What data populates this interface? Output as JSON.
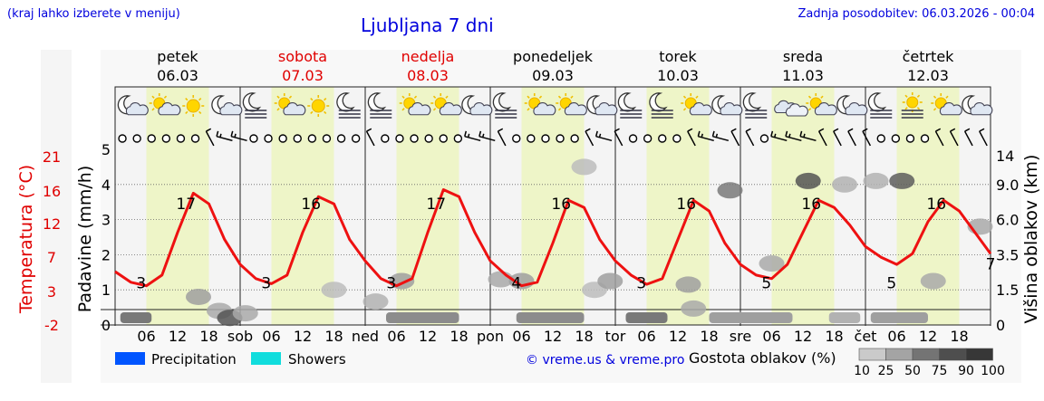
{
  "header": {
    "left_note": "(kraj lahko izberete v meniju)",
    "title": "Ljubljana 7 dni",
    "updated": "Zadnja posodobitev: 06.03.2026 - 00:04"
  },
  "colors": {
    "temperature": "#ee1111",
    "day_band": "#eef5c8",
    "night_band": "#f4f4f4",
    "precipitation": "#0055ff",
    "showers": "#11dddd",
    "axis_red": "#e00000",
    "link_blue": "#0000dd"
  },
  "days": [
    {
      "name": "petek",
      "date": "06.03",
      "weekend": false,
      "abbr": ""
    },
    {
      "name": "sobota",
      "date": "07.03",
      "weekend": true,
      "abbr": "sob"
    },
    {
      "name": "nedelja",
      "date": "08.03",
      "weekend": true,
      "abbr": "ned"
    },
    {
      "name": "ponedeljek",
      "date": "09.03",
      "weekend": false,
      "abbr": "pon"
    },
    {
      "name": "torek",
      "date": "10.03",
      "weekend": false,
      "abbr": "tor"
    },
    {
      "name": "sreda",
      "date": "11.03",
      "weekend": false,
      "abbr": "sre"
    },
    {
      "name": "četrtek",
      "date": "12.03",
      "weekend": false,
      "abbr": "čet"
    }
  ],
  "hour_ticks": [
    "06",
    "12",
    "18"
  ],
  "chart_data": {
    "type": "line",
    "title": "Ljubljana 7 dni",
    "x_unit": "hours from 06.03 00:00",
    "xlim": [
      0,
      168
    ],
    "temperature": {
      "axis_label": "Temperatura (°C)",
      "ticks": [
        "21",
        "16",
        "12",
        "7",
        "3",
        "-2"
      ],
      "ylim": [
        -2,
        21
      ],
      "x": [
        0,
        3,
        6,
        9,
        12,
        15,
        18,
        21,
        24,
        27,
        30,
        33,
        36,
        39,
        42,
        45,
        48,
        51,
        54,
        57,
        60,
        63,
        66,
        69,
        72,
        75,
        78,
        81,
        84,
        87,
        90,
        93,
        96,
        99,
        102,
        105,
        108,
        111,
        114,
        117,
        120,
        123,
        126,
        129,
        132,
        135,
        138,
        141,
        144,
        147,
        150,
        153,
        156,
        159,
        162,
        165,
        168
      ],
      "y": [
        5.5,
        4,
        3.5,
        5,
        11,
        16.5,
        15,
        10,
        6.5,
        4.5,
        3.8,
        5,
        11,
        16,
        15,
        10,
        7,
        4.5,
        3.5,
        4.5,
        11,
        17,
        16,
        11,
        7,
        5,
        3.5,
        4,
        9.5,
        15.5,
        14.5,
        10,
        7,
        5,
        3.7,
        4.5,
        10,
        15.5,
        14,
        9.5,
        6.5,
        5,
        4.5,
        6.5,
        11,
        15.5,
        14.5,
        12,
        9,
        7.5,
        6.5,
        8,
        12.5,
        15.5,
        14,
        11,
        8
      ],
      "max_labels": [
        {
          "x": 15,
          "text": "17"
        },
        {
          "x": 39,
          "text": "16"
        },
        {
          "x": 63,
          "text": "17"
        },
        {
          "x": 87,
          "text": "16"
        },
        {
          "x": 111,
          "text": "16"
        },
        {
          "x": 135,
          "text": "16"
        },
        {
          "x": 159,
          "text": "16"
        }
      ],
      "min_labels": [
        {
          "x": 5,
          "text": "3"
        },
        {
          "x": 29,
          "text": "3"
        },
        {
          "x": 53,
          "text": "3"
        },
        {
          "x": 77,
          "text": "4"
        },
        {
          "x": 101,
          "text": "3"
        },
        {
          "x": 125,
          "text": "5"
        },
        {
          "x": 149,
          "text": "5"
        },
        {
          "x": 168,
          "text": "7"
        }
      ]
    },
    "precipitation": {
      "axis_label": "Padavine (mm/h)",
      "ticks": [
        "5",
        "4",
        "3",
        "2",
        "1",
        "0"
      ],
      "ylim": [
        0,
        5
      ]
    },
    "cloud_height": {
      "axis_label": "Višina oblakov (km)",
      "ticks": [
        "14",
        "9.0",
        "6.0",
        "3.5",
        "1.5",
        "0"
      ]
    },
    "cloud_patches": [
      {
        "x": 16,
        "h_km": 1.2,
        "density": 40
      },
      {
        "x": 20,
        "h_km": 0.6,
        "density": 35
      },
      {
        "x": 22,
        "h_km": 0.3,
        "density": 80
      },
      {
        "x": 25,
        "h_km": 0.5,
        "density": 35
      },
      {
        "x": 42,
        "h_km": 1.5,
        "density": 25
      },
      {
        "x": 50,
        "h_km": 1.0,
        "density": 30
      },
      {
        "x": 55,
        "h_km": 2.0,
        "density": 40
      },
      {
        "x": 74,
        "h_km": 2.1,
        "density": 35
      },
      {
        "x": 78,
        "h_km": 2.0,
        "density": 40
      },
      {
        "x": 90,
        "h_km": 11.5,
        "density": 25
      },
      {
        "x": 92,
        "h_km": 1.5,
        "density": 25
      },
      {
        "x": 95,
        "h_km": 2.0,
        "density": 40
      },
      {
        "x": 110,
        "h_km": 1.8,
        "density": 40
      },
      {
        "x": 111,
        "h_km": 0.7,
        "density": 35
      },
      {
        "x": 118,
        "h_km": 8.5,
        "density": 60
      },
      {
        "x": 126,
        "h_km": 3.0,
        "density": 35
      },
      {
        "x": 133,
        "h_km": 9.5,
        "density": 80
      },
      {
        "x": 140,
        "h_km": 9.0,
        "density": 30
      },
      {
        "x": 146,
        "h_km": 9.5,
        "density": 30
      },
      {
        "x": 151,
        "h_km": 9.5,
        "density": 75
      },
      {
        "x": 157,
        "h_km": 2.0,
        "density": 35
      },
      {
        "x": 166,
        "h_km": 5.5,
        "density": 35
      }
    ],
    "bottom_strip": [
      {
        "x0": 1,
        "x1": 7,
        "density": 60
      },
      {
        "x0": 52,
        "x1": 66,
        "density": 50
      },
      {
        "x0": 77,
        "x1": 90,
        "density": 50
      },
      {
        "x0": 98,
        "x1": 106,
        "density": 60
      },
      {
        "x0": 114,
        "x1": 130,
        "density": 40
      },
      {
        "x0": 137,
        "x1": 143,
        "density": 30
      },
      {
        "x0": 145,
        "x1": 156,
        "density": 40
      }
    ],
    "weather_symbols": [
      "moon-cloud",
      "sun-cloud",
      "sun",
      "moon-cloud",
      "moon-fog",
      "sun-cloud",
      "sun",
      "moon-fog",
      "moon-fog",
      "sun-cloud",
      "sun-cloud",
      "moon-cloud",
      "moon-fog",
      "sun-cloud",
      "sun-cloud",
      "moon-cloud",
      "moon-fog",
      "moon-fog",
      "sun-cloud",
      "moon-cloud",
      "moon-fog",
      "cloud",
      "sun-cloud",
      "moon-cloud",
      "moon-fog",
      "sun-fog",
      "sun-cloud",
      "moon-cloud"
    ],
    "wind_symbols": [
      "calm",
      "calm",
      "calm",
      "calm",
      "calm",
      "calm",
      "barb",
      "barb2",
      "barb2",
      "calm",
      "calm",
      "calm",
      "calm",
      "calm",
      "calm",
      "calm",
      "calm",
      "barb",
      "calm",
      "calm",
      "calm",
      "calm",
      "calm",
      "calm",
      "barb2",
      "barb2",
      "barb",
      "calm",
      "calm",
      "calm",
      "calm",
      "calm",
      "barb",
      "barb2",
      "barb",
      "calm",
      "calm",
      "calm",
      "calm",
      "barb",
      "barb2",
      "barb2",
      "barb",
      "barb",
      "calm",
      "barb2",
      "barb2",
      "barb2",
      "barb",
      "barb",
      "barb",
      "barb",
      "calm",
      "calm",
      "calm",
      "calm",
      "barb",
      "barb",
      "barb",
      "barb"
    ]
  },
  "legend": {
    "precipitation": "Precipitation",
    "showers": "Showers",
    "credit": "© vreme.us & vreme.pro",
    "cloud_density_title": "Gostota oblakov (%)",
    "cloud_density_steps": [
      "10",
      "25",
      "50",
      "75",
      "90",
      "100"
    ]
  }
}
